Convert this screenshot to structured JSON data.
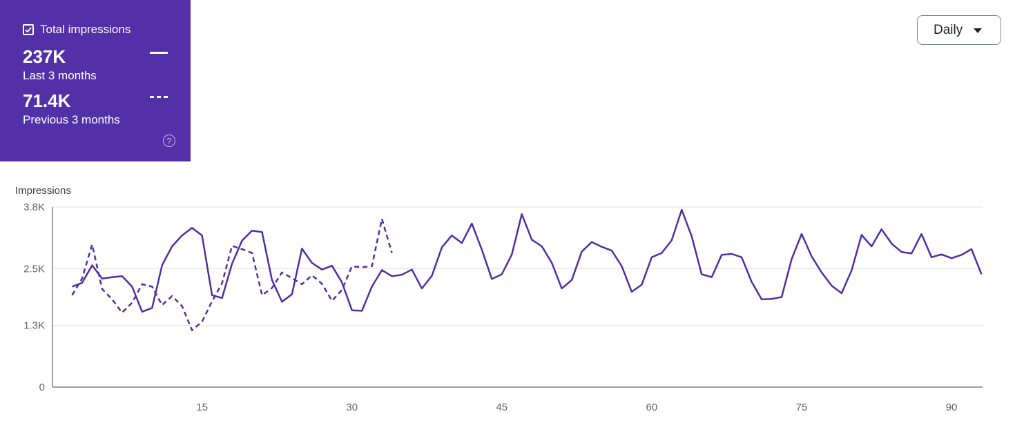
{
  "metric_card": {
    "label": "Total impressions",
    "checked": true,
    "current": {
      "value": "237K",
      "period": "Last 3 months"
    },
    "previous": {
      "value": "71.4K",
      "period": "Previous 3 months"
    },
    "help_icon": "help-circle-icon",
    "color": "#5230a8"
  },
  "granularity": {
    "selected": "Daily"
  },
  "chart_data": {
    "type": "line",
    "ylabel": "Impressions",
    "y_ticks": [
      "0",
      "1.3K",
      "2.5K",
      "3.8K"
    ],
    "y_tick_values": [
      0,
      1300,
      2500,
      3800
    ],
    "ylim": [
      0,
      3800
    ],
    "x_ticks": [
      15,
      30,
      45,
      60,
      75,
      90
    ],
    "xlim": [
      1,
      92
    ],
    "grid": true,
    "series": [
      {
        "style": "solid",
        "color": "#4f2ea3",
        "x_start": 2,
        "values": [
          2120,
          2200,
          2570,
          2290,
          2320,
          2340,
          2120,
          1590,
          1670,
          2570,
          2970,
          3200,
          3360,
          3200,
          1940,
          1880,
          2600,
          3090,
          3300,
          3270,
          2260,
          1800,
          1960,
          2920,
          2620,
          2480,
          2560,
          2210,
          1620,
          1610,
          2120,
          2470,
          2340,
          2370,
          2480,
          2080,
          2350,
          2950,
          3200,
          3040,
          3450,
          2900,
          2280,
          2380,
          2800,
          3650,
          3110,
          2970,
          2620,
          2080,
          2260,
          2860,
          3060,
          2960,
          2880,
          2550,
          2010,
          2160,
          2740,
          2830,
          3100,
          3740,
          3180,
          2380,
          2320,
          2790,
          2810,
          2740,
          2220,
          1850,
          1860,
          1900,
          2700,
          3230,
          2760,
          2420,
          2140,
          1980,
          2460,
          3210,
          2970,
          3330,
          3030,
          2850,
          2820,
          3230,
          2740,
          2800,
          2720,
          2790,
          2910,
          2380
        ]
      },
      {
        "style": "dashed",
        "color": "#4f2ea3",
        "x_start": 2,
        "values": [
          1940,
          2290,
          3010,
          2070,
          1850,
          1570,
          1780,
          2170,
          2120,
          1730,
          1920,
          1710,
          1200,
          1380,
          1810,
          2190,
          2980,
          2910,
          2830,
          1940,
          2090,
          2420,
          2300,
          2170,
          2360,
          2180,
          1820,
          2050,
          2550,
          2530,
          2550,
          3550,
          2830
        ]
      }
    ]
  }
}
